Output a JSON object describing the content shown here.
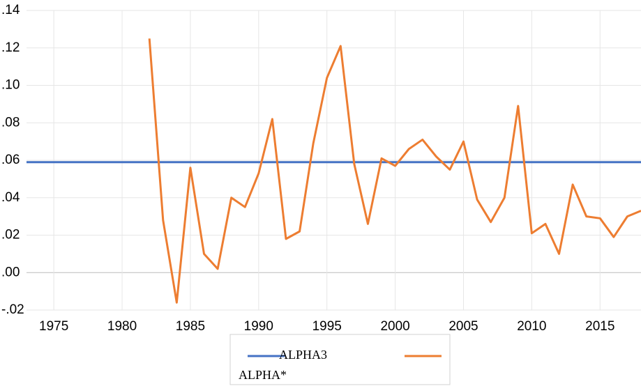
{
  "chart_data": {
    "type": "line",
    "x": [
      1973,
      1974,
      1975,
      1976,
      1977,
      1978,
      1979,
      1980,
      1981,
      1982,
      1983,
      1984,
      1985,
      1986,
      1987,
      1988,
      1989,
      1990,
      1991,
      1992,
      1993,
      1994,
      1995,
      1996,
      1997,
      1998,
      1999,
      2000,
      2001,
      2002,
      2003,
      2004,
      2005,
      2006,
      2007,
      2008,
      2009,
      2010,
      2011,
      2012,
      2013,
      2014,
      2015,
      2016,
      2017,
      2018
    ],
    "series": [
      {
        "name": "ALPHA3",
        "color": "#4472c4",
        "values": [
          0.059,
          0.059,
          0.059,
          0.059,
          0.059,
          0.059,
          0.059,
          0.059,
          0.059,
          0.059,
          0.059,
          0.059,
          0.059,
          0.059,
          0.059,
          0.059,
          0.059,
          0.059,
          0.059,
          0.059,
          0.059,
          0.059,
          0.059,
          0.059,
          0.059,
          0.059,
          0.059,
          0.059,
          0.059,
          0.059,
          0.059,
          0.059,
          0.059,
          0.059,
          0.059,
          0.059,
          0.059,
          0.059,
          0.059,
          0.059,
          0.059,
          0.059,
          0.059,
          0.059,
          0.059,
          0.059
        ]
      },
      {
        "name": "ALPHA*",
        "color": "#ed7d31",
        "values": [
          null,
          null,
          null,
          null,
          null,
          null,
          null,
          null,
          null,
          0.125,
          0.028,
          -0.016,
          0.056,
          0.01,
          0.002,
          0.04,
          0.035,
          0.053,
          0.082,
          0.018,
          0.022,
          0.069,
          0.104,
          0.121,
          0.058,
          0.026,
          0.061,
          0.057,
          0.066,
          0.071,
          0.062,
          0.055,
          0.07,
          0.039,
          0.027,
          0.04,
          0.089,
          0.021,
          0.026,
          0.01,
          0.047,
          0.03,
          0.029,
          0.019,
          0.03,
          0.033
        ]
      }
    ],
    "xlim": [
      1973,
      2018
    ],
    "xticks": [
      1975,
      1980,
      1985,
      1990,
      1995,
      2000,
      2005,
      2010,
      2015
    ],
    "ylim": [
      -0.02,
      0.14
    ],
    "yticks": [
      {
        "value": -0.02,
        "label": "-.02"
      },
      {
        "value": 0,
        "label": ".00"
      },
      {
        "value": 0.02,
        "label": ".02"
      },
      {
        "value": 0.04,
        "label": ".04"
      },
      {
        "value": 0.06,
        "label": ".06"
      },
      {
        "value": 0.08,
        "label": ".08"
      },
      {
        "value": 0.1,
        "label": ".10"
      },
      {
        "value": 0.12,
        "label": ".12"
      },
      {
        "value": 0.14,
        "label": ".14"
      }
    ],
    "grid": true
  }
}
